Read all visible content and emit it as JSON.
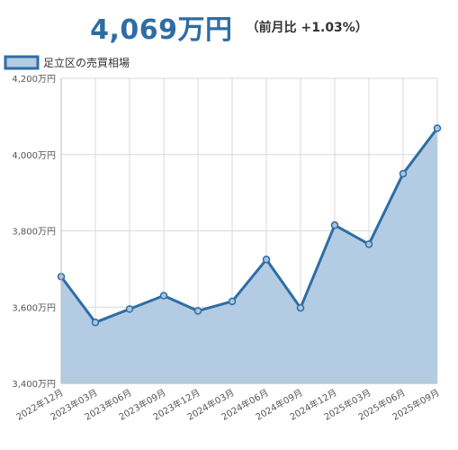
{
  "header": {
    "price": "4,069万円",
    "change": "（前月比 +1.03%）"
  },
  "colors": {
    "line": "#2e6da4",
    "fill": "#b3cce3",
    "grid": "#d9d9d9",
    "price": "#2e6da4"
  },
  "chart_data": {
    "type": "area",
    "categories": [
      "2022年12月",
      "2023年03月",
      "2023年06月",
      "2023年09月",
      "2023年12月",
      "2024年03月",
      "2024年06月",
      "2024年09月",
      "2024年12月",
      "2025年03月",
      "2025年06月",
      "2025年09月"
    ],
    "series": [
      {
        "name": "足立区の売買相場",
        "values": [
          3680,
          3560,
          3595,
          3630,
          3590,
          3615,
          3725,
          3598,
          3815,
          3765,
          3950,
          4069
        ]
      }
    ],
    "y_ticks": [
      "3,400万円",
      "3,600万円",
      "3,800万円",
      "4,000万円",
      "4,200万円"
    ],
    "ylim": [
      3400,
      4200
    ],
    "grid": true,
    "legend": "top-left"
  }
}
